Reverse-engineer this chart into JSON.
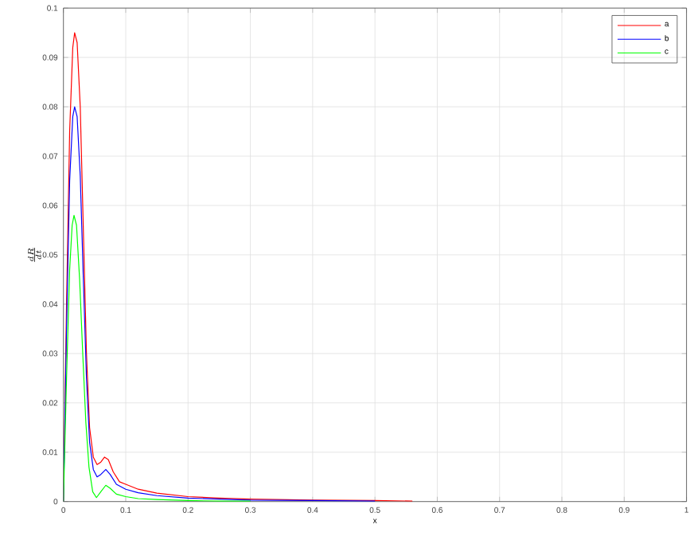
{
  "chart_data": {
    "type": "line",
    "xlabel": "x",
    "ylabel": "\\frac{dR}{dt}",
    "xlim": [
      0,
      1
    ],
    "ylim": [
      0,
      0.1
    ],
    "xticks": [
      0,
      0.1,
      0.2,
      0.3,
      0.4,
      0.5,
      0.6,
      0.7,
      0.8,
      0.9,
      1
    ],
    "yticks": [
      0,
      0.01,
      0.02,
      0.03,
      0.04,
      0.05,
      0.06,
      0.07,
      0.08,
      0.09,
      0.1
    ],
    "grid": true,
    "legend": "top right",
    "series": [
      {
        "name": "a",
        "color": "#ff0000",
        "x": [
          0,
          0.005,
          0.01,
          0.015,
          0.018,
          0.022,
          0.027,
          0.032,
          0.037,
          0.042,
          0.048,
          0.054,
          0.06,
          0.066,
          0.072,
          0.08,
          0.09,
          0.1,
          0.12,
          0.15,
          0.2,
          0.25,
          0.3,
          0.4,
          0.5,
          0.56
        ],
        "values": [
          0,
          0.04,
          0.075,
          0.092,
          0.095,
          0.093,
          0.08,
          0.055,
          0.03,
          0.015,
          0.009,
          0.0075,
          0.008,
          0.009,
          0.0085,
          0.006,
          0.004,
          0.0035,
          0.0025,
          0.0017,
          0.001,
          0.0007,
          0.0005,
          0.0003,
          0.0002,
          0.0001
        ]
      },
      {
        "name": "b",
        "color": "#0000ff",
        "x": [
          0,
          0.005,
          0.01,
          0.015,
          0.018,
          0.022,
          0.027,
          0.032,
          0.037,
          0.042,
          0.048,
          0.054,
          0.06,
          0.068,
          0.075,
          0.085,
          0.1,
          0.12,
          0.15,
          0.2,
          0.25,
          0.3,
          0.4,
          0.5
        ],
        "values": [
          0,
          0.035,
          0.065,
          0.078,
          0.08,
          0.078,
          0.066,
          0.045,
          0.025,
          0.012,
          0.0065,
          0.005,
          0.0055,
          0.0065,
          0.0055,
          0.0035,
          0.0025,
          0.0018,
          0.0012,
          0.0007,
          0.0005,
          0.0003,
          0.0002,
          0.0001
        ]
      },
      {
        "name": "c",
        "color": "#00ff00",
        "x": [
          0,
          0.005,
          0.01,
          0.014,
          0.017,
          0.021,
          0.026,
          0.031,
          0.036,
          0.041,
          0.047,
          0.053,
          0.06,
          0.068,
          0.075,
          0.085,
          0.1,
          0.12,
          0.15,
          0.2,
          0.25,
          0.3
        ],
        "values": [
          0,
          0.025,
          0.047,
          0.056,
          0.058,
          0.056,
          0.045,
          0.03,
          0.016,
          0.007,
          0.002,
          0.0008,
          0.002,
          0.0033,
          0.0027,
          0.0015,
          0.001,
          0.0006,
          0.0004,
          0.0002,
          0.0001,
          0.0001
        ]
      }
    ]
  }
}
